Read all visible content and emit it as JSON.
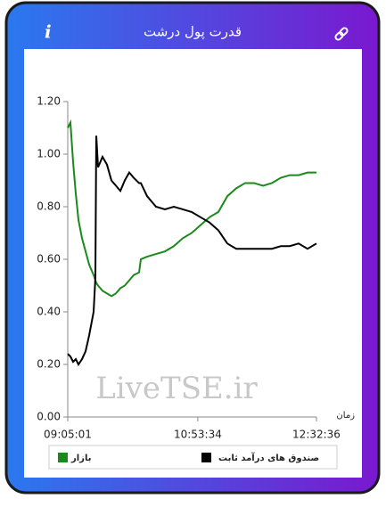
{
  "header": {
    "title": "قدرت پول درشت",
    "info_icon": "i"
  },
  "watermark": "LiveTSE.ir",
  "chart_data": {
    "type": "line",
    "x_label": "زمان",
    "x": [
      "09:05:01",
      "09:07:15",
      "09:09:29",
      "09:11:43",
      "09:13:57",
      "09:16:55",
      "09:19:54",
      "09:22:52",
      "09:26:36",
      "09:28:05",
      "09:28:49",
      "09:30:19",
      "09:34:02",
      "09:37:45",
      "09:41:28",
      "09:45:12",
      "09:48:55",
      "09:52:38",
      "09:56:21",
      "10:00:04",
      "10:04:32",
      "10:06:02",
      "10:11:14",
      "10:18:40",
      "10:26:07",
      "10:33:33",
      "10:41:00",
      "10:48:26",
      "10:55:52",
      "11:03:19",
      "11:10:45",
      "11:18:12",
      "11:25:38",
      "11:33:04",
      "11:40:31",
      "11:47:57",
      "11:55:24",
      "12:02:50",
      "12:10:16",
      "12:17:43",
      "12:25:09",
      "12:32:36"
    ],
    "series": [
      {
        "name": "بازار",
        "color": "#1a8a1a",
        "values": [
          1.1,
          1.12,
          0.97,
          0.85,
          0.75,
          0.68,
          0.63,
          0.58,
          0.54,
          0.52,
          0.51,
          0.5,
          0.48,
          0.47,
          0.46,
          0.47,
          0.49,
          0.5,
          0.52,
          0.54,
          0.55,
          0.6,
          0.61,
          0.62,
          0.63,
          0.65,
          0.68,
          0.7,
          0.73,
          0.76,
          0.78,
          0.84,
          0.87,
          0.89,
          0.89,
          0.88,
          0.89,
          0.91,
          0.92,
          0.92,
          0.93,
          0.93
        ]
      },
      {
        "name": "صندوق های درآمد ثابت",
        "color": "#000000",
        "values": [
          0.24,
          0.23,
          0.21,
          0.22,
          0.2,
          0.22,
          0.25,
          0.31,
          0.4,
          0.53,
          1.07,
          0.95,
          0.99,
          0.96,
          0.9,
          0.88,
          0.86,
          0.9,
          0.93,
          0.91,
          0.89,
          0.89,
          0.84,
          0.8,
          0.79,
          0.8,
          0.79,
          0.78,
          0.76,
          0.74,
          0.71,
          0.66,
          0.64,
          0.64,
          0.64,
          0.64,
          0.64,
          0.65,
          0.65,
          0.66,
          0.64,
          0.66
        ]
      }
    ],
    "xlim": [
      "09:05:01",
      "12:32:36"
    ],
    "xticks": [
      "09:05:01",
      "10:53:34",
      "12:32:36"
    ],
    "ylim": [
      0,
      1.2
    ],
    "yticks": [
      {
        "value": 0,
        "label": "0.00"
      },
      {
        "value": 0.2,
        "label": "0.20"
      },
      {
        "value": 0.4,
        "label": "0.40"
      },
      {
        "value": 0.6,
        "label": "0.60"
      },
      {
        "value": 0.8,
        "label": "0.80"
      },
      {
        "value": 1,
        "label": "1.00"
      },
      {
        "value": 1.2,
        "label": "1.20"
      }
    ]
  }
}
